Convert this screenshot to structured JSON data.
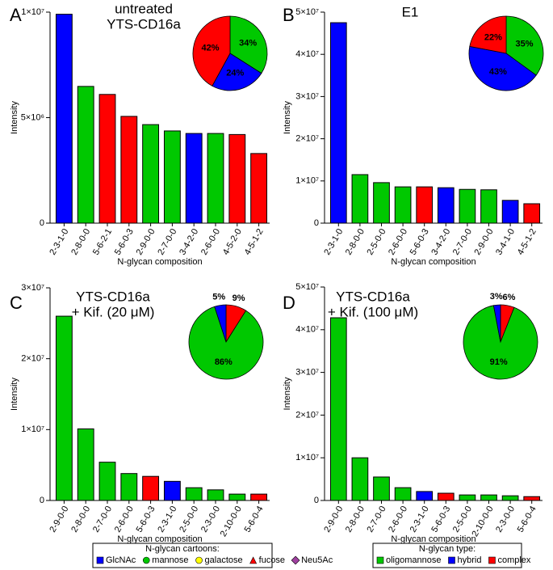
{
  "chart_data": [
    {
      "type": "bar",
      "letter": "A",
      "title": [
        "untreated",
        "YTS-CD16a"
      ],
      "y_label": "Intensity",
      "x_label": "N-glycan composition",
      "categories": [
        "2-3-1-0",
        "2-8-0-0",
        "5-6-2-1",
        "5-6-0-3",
        "2-9-0-0",
        "2-7-0-0",
        "3-4-2-0",
        "2-6-0-0",
        "4-5-2-0",
        "4-5-1-2"
      ],
      "values": [
        9900000,
        6480000,
        6100000,
        5060000,
        4670000,
        4370000,
        4250000,
        4250000,
        4200000,
        3300000
      ],
      "colors": [
        "#0000ff",
        "#00c800",
        "#ff0000",
        "#ff0000",
        "#00c800",
        "#00c800",
        "#0000ff",
        "#00c800",
        "#ff0000",
        "#ff0000"
      ],
      "ylim": [
        0,
        10000000
      ],
      "yticks": [
        0,
        {
          "value": 5000000,
          "label": "5×10⁶"
        },
        {
          "value": 10000000,
          "label": "1×10⁷"
        }
      ],
      "pie": {
        "values": [
          34,
          24,
          42
        ],
        "value_labels": [
          "34%",
          "24%",
          "42%"
        ],
        "colors": [
          "#00c800",
          "#0000ff",
          "#ff0000"
        ]
      }
    },
    {
      "type": "bar",
      "letter": "B",
      "title": [
        "E1"
      ],
      "y_label": "Intensity",
      "x_label": "N-glycan composition",
      "categories": [
        "2-3-1-0",
        "2-8-0-0",
        "2-5-0-0",
        "2-6-0-0",
        "5-6-0-3",
        "3-4-2-0",
        "2-7-0-0",
        "2-9-0-0",
        "3-4-1-0",
        "4-5-1-2"
      ],
      "values": [
        47500000,
        11500000,
        9600000,
        8600000,
        8600000,
        8400000,
        8000000,
        7900000,
        5400000,
        4600000
      ],
      "colors": [
        "#0000ff",
        "#00c800",
        "#00c800",
        "#00c800",
        "#ff0000",
        "#0000ff",
        "#00c800",
        "#00c800",
        "#0000ff",
        "#ff0000"
      ],
      "ylim": [
        0,
        50000000
      ],
      "yticks": [
        0,
        {
          "value": 10000000,
          "label": "1×10⁷"
        },
        {
          "value": 20000000,
          "label": "2×10⁷"
        },
        {
          "value": 30000000,
          "label": "3×10⁷"
        },
        {
          "value": 40000000,
          "label": "4×10⁷"
        },
        {
          "value": 50000000,
          "label": "5×10⁷"
        }
      ],
      "pie": {
        "values": [
          35,
          43,
          22
        ],
        "value_labels": [
          "35%",
          "43%",
          "22%"
        ],
        "colors": [
          "#00c800",
          "#0000ff",
          "#ff0000"
        ]
      }
    },
    {
      "type": "bar",
      "letter": "C",
      "title": [
        "YTS-CD16a",
        "+ Kif. (20 μM)"
      ],
      "y_label": "Intensity",
      "x_label": "N-glycan composition",
      "categories": [
        "2-9-0-0",
        "2-8-0-0",
        "2-7-0-0",
        "2-6-0-0",
        "5-6-0-3",
        "2-3-1-0",
        "2-5-0-0",
        "2-3-0-0",
        "2-10-0-0",
        "5-6-0-4"
      ],
      "values": [
        26000000,
        10100000,
        5400000,
        3800000,
        3400000,
        2700000,
        1800000,
        1500000,
        900000,
        900000
      ],
      "colors": [
        "#00c800",
        "#00c800",
        "#00c800",
        "#00c800",
        "#ff0000",
        "#0000ff",
        "#00c800",
        "#00c800",
        "#00c800",
        "#ff0000"
      ],
      "ylim": [
        0,
        30000000
      ],
      "yticks": [
        0,
        {
          "value": 10000000,
          "label": "1×10⁷"
        },
        {
          "value": 20000000,
          "label": "2×10⁷"
        },
        {
          "value": 30000000,
          "label": "3×10⁷"
        }
      ],
      "pie": {
        "values": [
          9,
          86,
          5
        ],
        "value_labels": [
          "9%",
          "86%",
          "5%"
        ],
        "colors": [
          "#ff0000",
          "#00c800",
          "#0000ff"
        ]
      }
    },
    {
      "type": "bar",
      "letter": "D",
      "title": [
        "YTS-CD16a",
        "+ Kif. (100 μM)"
      ],
      "y_label": "Intensity",
      "x_label": "N-glycan composition",
      "categories": [
        "2-9-0-0",
        "2-8-0-0",
        "2-7-0-0",
        "2-6-0-0",
        "2-3-1-0",
        "5-6-0-3",
        "2-5-0-0",
        "2-10-0-0",
        "2-3-0-0",
        "5-6-0-4"
      ],
      "values": [
        42800000,
        10000000,
        5500000,
        3000000,
        2100000,
        1700000,
        1300000,
        1300000,
        1100000,
        900000
      ],
      "colors": [
        "#00c800",
        "#00c800",
        "#00c800",
        "#00c800",
        "#0000ff",
        "#ff0000",
        "#00c800",
        "#00c800",
        "#00c800",
        "#ff0000"
      ],
      "ylim": [
        0,
        50000000
      ],
      "yticks": [
        0,
        {
          "value": 10000000,
          "label": "1×10⁷"
        },
        {
          "value": 20000000,
          "label": "2×10⁷"
        },
        {
          "value": 30000000,
          "label": "3×10⁷"
        },
        {
          "value": 40000000,
          "label": "4×10⁷"
        },
        {
          "value": 50000000,
          "label": "5×10⁷"
        }
      ],
      "pie": {
        "values": [
          6,
          91,
          3
        ],
        "value_labels": [
          "6%",
          "91%",
          "3%"
        ],
        "colors": [
          "#ff0000",
          "#00c800",
          "#0000ff"
        ]
      }
    }
  ],
  "legends": [
    {
      "title": "N-glycan cartoons:",
      "items": [
        {
          "name": "GlcNAc",
          "shape": "square",
          "color": "#0000ff"
        },
        {
          "name": "mannose",
          "shape": "circle",
          "color": "#00c800"
        },
        {
          "name": "galactose",
          "shape": "circle",
          "color": "#ffff00"
        },
        {
          "name": "fucose",
          "shape": "triangle",
          "color": "#ff0000"
        },
        {
          "name": "Neu5Ac",
          "shape": "diamond",
          "color": "#a040a0"
        }
      ]
    },
    {
      "title": "N-glycan type:",
      "items": [
        {
          "name": "oligomannose",
          "shape": "square",
          "color": "#00c800"
        },
        {
          "name": "hybrid",
          "shape": "square",
          "color": "#0000ff"
        },
        {
          "name": "complex",
          "shape": "square",
          "color": "#ff0000"
        }
      ]
    }
  ]
}
